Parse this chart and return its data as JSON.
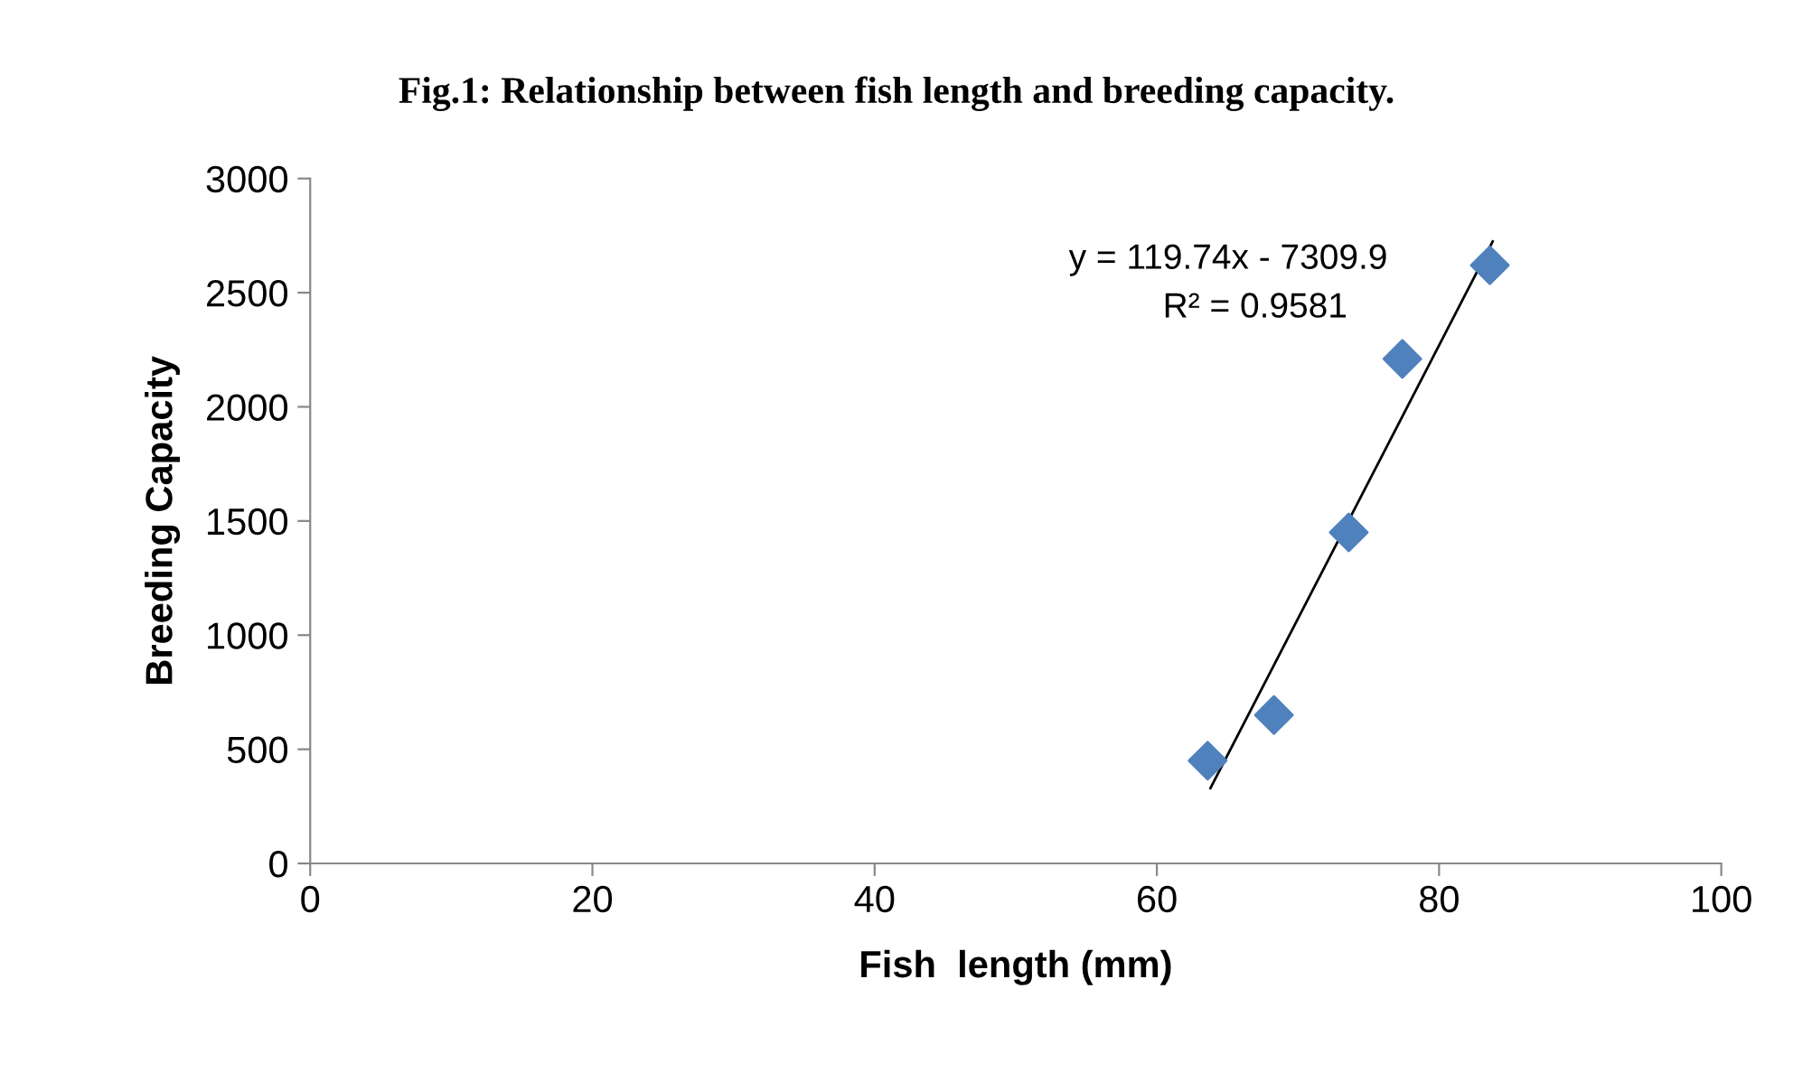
{
  "chart_data": {
    "type": "scatter",
    "title": "Fig.1: Relationship between fish length and breeding capacity.",
    "xlabel": "Fish  length (mm)",
    "ylabel": "Breeding Capacity",
    "series": [
      {
        "color": "#4f81bd",
        "marker": "diamond",
        "x": [
          63.6,
          68.3,
          73.6,
          77.4,
          83.6
        ],
        "values": [
          450,
          650,
          1450,
          2210,
          2620
        ]
      },
      {
        "type": "line",
        "color": "#000000",
        "marker": "none",
        "line_style": "solid",
        "x": [
          63.8,
          83.8
        ],
        "values": [
          330,
          2724
        ]
      }
    ],
    "annotations": [
      "y = 119.74x - 7309.9",
      "R² = 0.9581"
    ],
    "xlim": [
      0,
      100
    ],
    "xticks": [
      0,
      20,
      40,
      60,
      80,
      100
    ],
    "ylim": [
      0,
      3000
    ],
    "yticks": [
      0,
      500,
      1000,
      1500,
      2000,
      2500,
      3000
    ],
    "grid": false,
    "legend": false
  }
}
